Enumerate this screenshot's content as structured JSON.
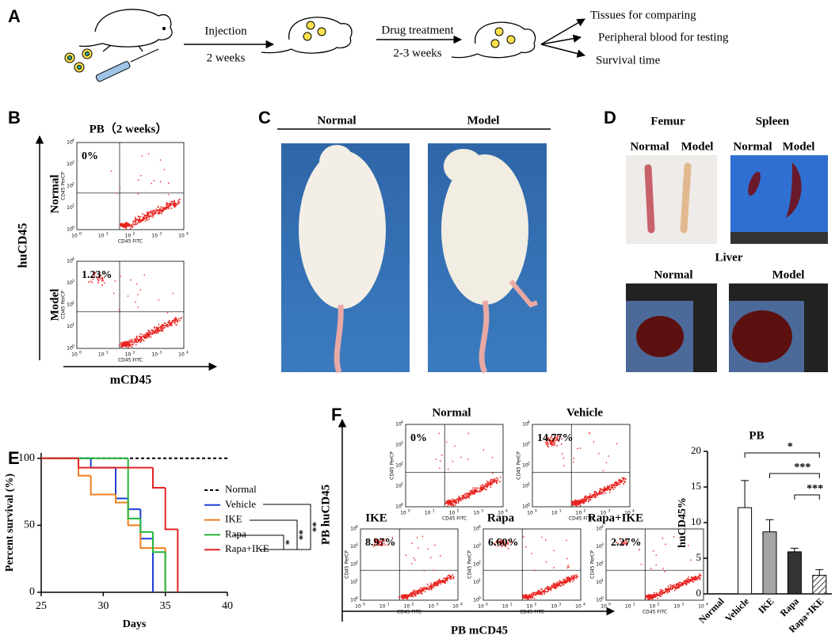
{
  "panels": {
    "a": {
      "label": "A",
      "steps": [
        "Injection",
        "2 weeks",
        "Drug treatment",
        "2-3 weeks"
      ],
      "outcomes": [
        "Tissues for comparing",
        "Peripheral blood for testing",
        "Survival time"
      ]
    },
    "b": {
      "label": "B",
      "title": "PB（2 weeks）",
      "y_label": "huCD45",
      "x_label": "mCD45",
      "plots": [
        {
          "group": "Normal",
          "percent": "0%"
        },
        {
          "group": "Model",
          "percent": "1.23%"
        }
      ]
    },
    "c": {
      "label": "C",
      "groups": [
        "Normal",
        "Model"
      ]
    },
    "d": {
      "label": "D",
      "femur": {
        "title": "Femur",
        "groups": [
          "Normal",
          "Model"
        ]
      },
      "spleen": {
        "title": "Spleen",
        "groups": [
          "Normal",
          "Model"
        ]
      },
      "liver": {
        "title": "Liver",
        "groups": [
          "Normal",
          "Model"
        ]
      }
    },
    "f": {
      "label": "F",
      "y_label": "PB huCD45",
      "x_label": "PB mCD45",
      "plots": [
        {
          "group": "Normal",
          "percent": "0%"
        },
        {
          "group": "Vehicle",
          "percent": "14.77%"
        },
        {
          "group": "IKE",
          "percent": "8.97%"
        },
        {
          "group": "Rapa",
          "percent": "6.60%"
        },
        {
          "group": "Rapa+IKE",
          "percent": "2.27%"
        }
      ]
    },
    "flow_axes": {
      "x_name": "CD45 FITC",
      "y_name": "CD45 PerCP",
      "tick_base": "10",
      "tick_exponents": [
        "0",
        "1",
        "2",
        "3",
        "4"
      ]
    }
  },
  "chart_data": [
    {
      "type": "step",
      "label": "E",
      "x_label": "Days",
      "y_label": "Percent survival (%)",
      "xlim": [
        25,
        40
      ],
      "xticks": [
        25,
        30,
        35,
        40
      ],
      "ylim": [
        0,
        104
      ],
      "yticks": [
        0,
        50,
        100
      ],
      "series": [
        {
          "name": "Normal",
          "color": "#000000",
          "dashed": true,
          "x": [
            25,
            40
          ],
          "values": [
            100,
            100
          ]
        },
        {
          "name": "Vehicle",
          "color": "#1f3fd9",
          "x": [
            25,
            29,
            31,
            32,
            33,
            34
          ],
          "values": [
            100,
            93,
            70,
            62,
            40,
            0
          ]
        },
        {
          "name": "IKE",
          "color": "#f07f20",
          "x": [
            25,
            28,
            29,
            31,
            32,
            33,
            35
          ],
          "values": [
            100,
            87,
            73,
            67,
            50,
            33,
            0
          ]
        },
        {
          "name": "Rapa",
          "color": "#22b83a",
          "x": [
            25,
            32,
            33,
            34,
            35
          ],
          "values": [
            100,
            55,
            45,
            30,
            0
          ]
        },
        {
          "name": "Rapa+IKE",
          "color": "#e32424",
          "x": [
            25,
            28,
            34,
            35,
            36
          ],
          "values": [
            100,
            93,
            78,
            47,
            0
          ]
        }
      ],
      "annotations": [
        "**",
        "**",
        "*"
      ]
    },
    {
      "type": "bar",
      "title": "PB",
      "y_label": "huCD45%",
      "categories": [
        "Normal",
        "Vehicle",
        "IKE",
        "Rapa",
        "Rapa+IKE"
      ],
      "values": [
        0,
        12.1,
        8.7,
        5.9,
        2.6
      ],
      "errors": [
        0,
        3.8,
        1.7,
        0.5,
        0.8
      ],
      "colors": [
        "#ffffff",
        "#ffffff",
        "#a6a6a6",
        "#333333",
        "#ffffff"
      ],
      "hatched": [
        false,
        false,
        false,
        false,
        true
      ],
      "ylim": [
        0,
        20
      ],
      "yticks": [
        0,
        5,
        10,
        15,
        20
      ],
      "annotations": [
        "*",
        "***",
        "***"
      ]
    }
  ]
}
